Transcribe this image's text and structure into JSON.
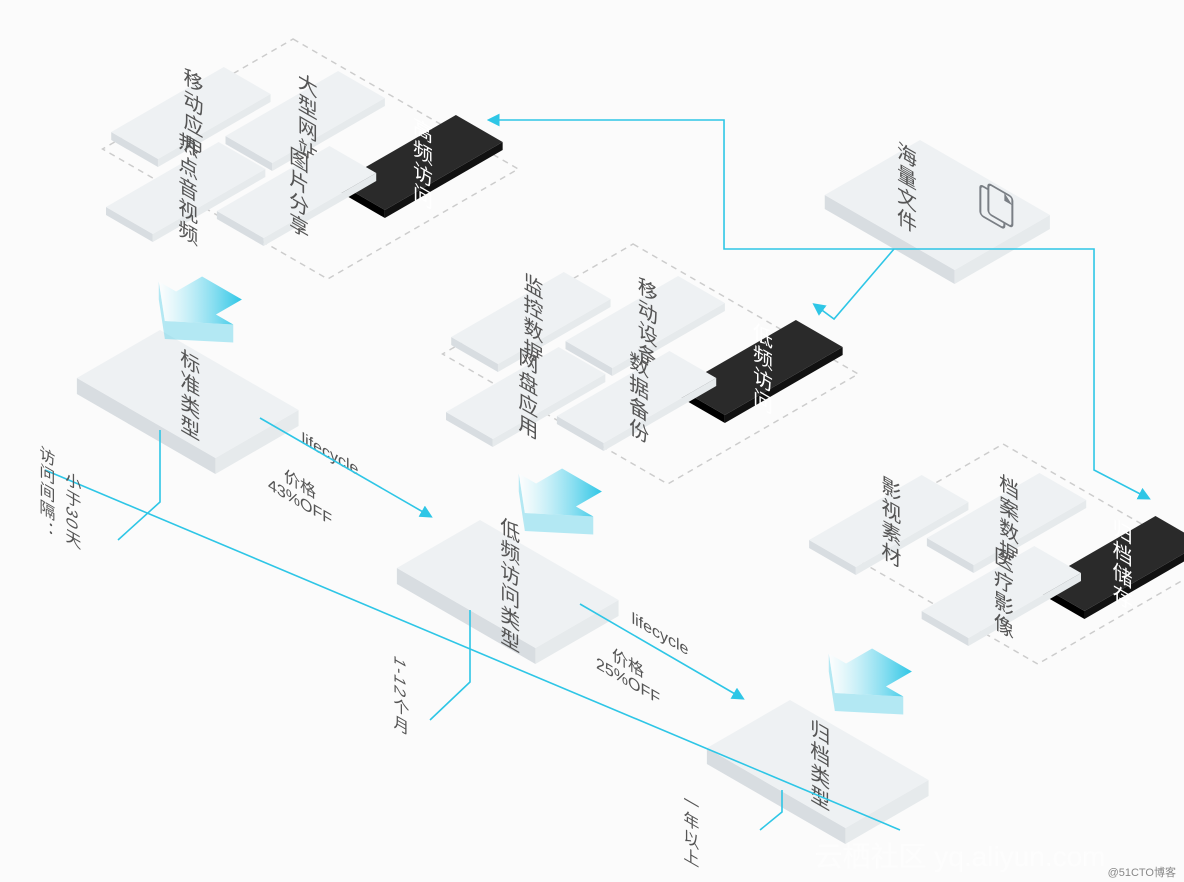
{
  "colors": {
    "bg": "#fbfbfb",
    "tile_face": "#eef1f3",
    "tile_side_dark": "#d8dde1",
    "tile_side_light": "#e6eaec",
    "tile_text": "#555555",
    "black_face": "#2a2a2a",
    "black_side": "#151515",
    "white": "#ffffff",
    "dashed": "#cccccc",
    "line": "#2ec6e6",
    "arrow_grad_start": "#ffffff",
    "arrow_grad_end": "#2ec6e6",
    "watermark": "#ffffff"
  },
  "groups": {
    "high_freq": {
      "title": "高频访问",
      "items": [
        "大型网站",
        "移动应用",
        "图片分享",
        "热点音视频"
      ]
    },
    "low_freq": {
      "title": "低频访问",
      "items": [
        "移动设备",
        "监控数据",
        "数据备份",
        "网盘应用"
      ]
    },
    "archive": {
      "title": "归档储存",
      "items": [
        "档案数据",
        "影视素材",
        "医疗影像"
      ]
    }
  },
  "source": {
    "label": "海量文件"
  },
  "flow": {
    "standard": "标准类型",
    "low_freq_type": "低频访问类型",
    "archive_type": "归档类型",
    "lifecycle": "lifecycle",
    "price1": "价格\n43%OFF",
    "price2": "价格\n25%OFF"
  },
  "timeline": {
    "label": "访问间隔：",
    "t1": "小于30天",
    "t2": "1-12个月",
    "t3": "一年以上"
  },
  "watermark": "云栖社区 yq.aliyun.com",
  "credit": "@51CTO博客",
  "iso": {
    "angle_deg": 30,
    "tile_depth": 12
  }
}
